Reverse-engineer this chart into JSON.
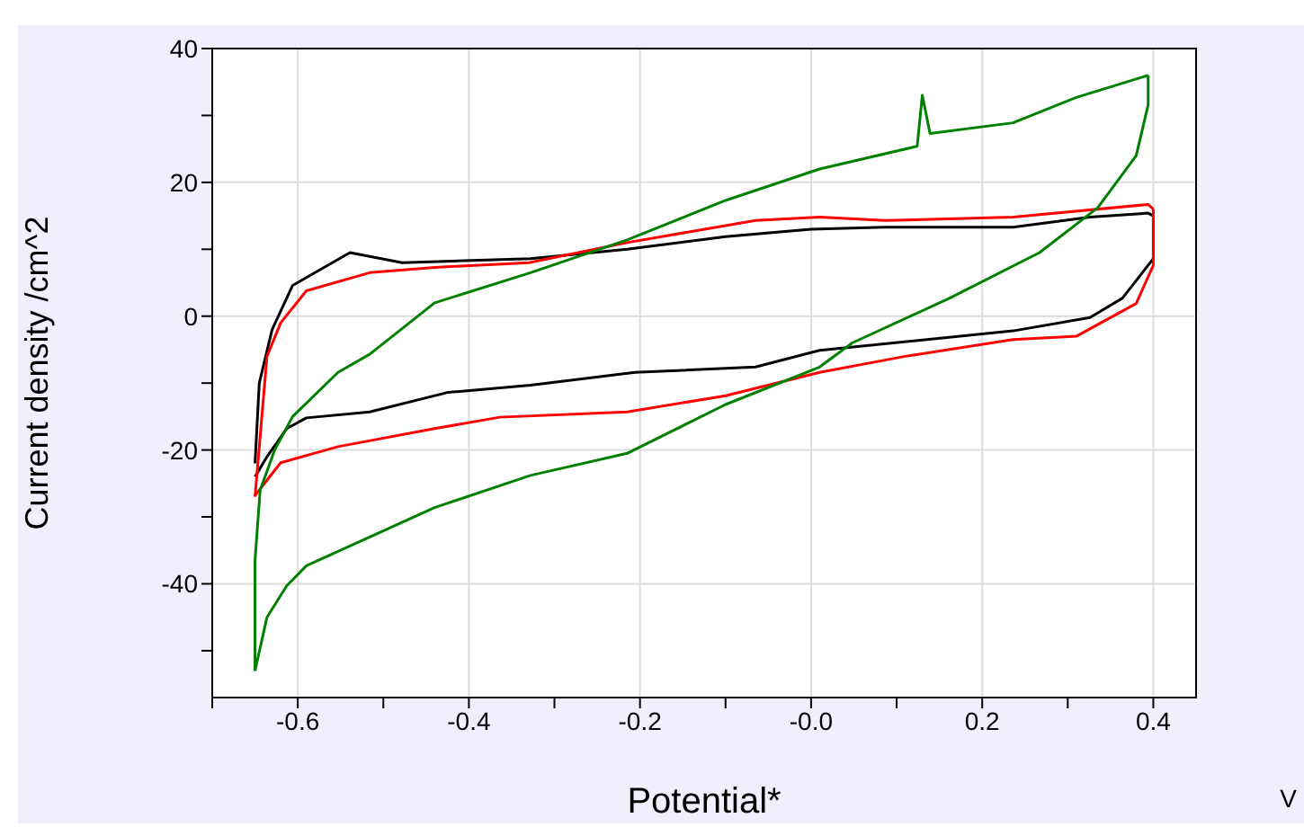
{
  "chart_data": {
    "type": "line",
    "xlabel": "Potential*",
    "ylabel": "Current density /cm^2",
    "annotations": [
      "V"
    ],
    "xlim": [
      -0.7,
      0.45
    ],
    "ylim": [
      -57,
      40
    ],
    "xticks": [
      {
        "value": -0.7,
        "label": null
      },
      -0.6,
      {
        "value": -0.5,
        "label": null
      },
      -0.4,
      {
        "value": -0.3,
        "label": null
      },
      -0.2,
      {
        "value": -0.1,
        "label": null
      },
      {
        "value": 0,
        "label": "-0.0"
      },
      {
        "value": 0.1,
        "label": null
      },
      0.2,
      {
        "value": 0.3,
        "label": null
      },
      0.4
    ],
    "yticks": [
      {
        "value": -50,
        "label": null
      },
      -40,
      {
        "value": -30,
        "label": null
      },
      -20,
      {
        "value": -10,
        "label": null
      },
      0,
      {
        "value": 10,
        "label": null
      },
      20,
      {
        "value": 30,
        "label": null
      },
      40
    ],
    "grid": true,
    "marker": "none",
    "line_style": "solid",
    "series": [
      {
        "color": "#000000",
        "x": [
          -0.65,
          -0.645,
          -0.63,
          -0.606,
          -0.539,
          -0.478,
          -0.328,
          -0.215,
          -0.1,
          0,
          0.086,
          0.236,
          0.326,
          0.394,
          0.4
        ],
        "values": [
          -22,
          -10,
          -2,
          4.6,
          9.5,
          8,
          8.6,
          10,
          11.9,
          13,
          13.3,
          13.3,
          14.8,
          15.4,
          15
        ]
      },
      {
        "color": "#000000",
        "x": [
          0.4,
          0.4,
          0.364,
          0.326,
          0.236,
          0.01,
          -0.065,
          -0.206,
          -0.328,
          -0.425,
          -0.516,
          -0.59,
          -0.613,
          -0.636,
          -0.65
        ],
        "values": [
          15,
          8.6,
          2.7,
          -0.2,
          -2.2,
          -5.1,
          -7.6,
          -8.4,
          -10.3,
          -11.4,
          -14.3,
          -15.2,
          -16.8,
          -21,
          -24
        ]
      },
      {
        "color": "#ff0000",
        "x": [
          -0.65,
          -0.636,
          -0.62,
          -0.59,
          -0.516,
          -0.44,
          -0.33,
          -0.215,
          -0.065,
          0.01,
          0.086,
          0.236,
          0.394,
          0.4
        ],
        "values": [
          -27,
          -6,
          -1,
          3.8,
          6.5,
          7.3,
          8,
          11,
          14.3,
          14.8,
          14.3,
          14.8,
          16.7,
          16
        ]
      },
      {
        "color": "#ff0000",
        "x": [
          0.4,
          0.4,
          0.38,
          0.31,
          0.236,
          0.11,
          0.01,
          -0.1,
          -0.215,
          -0.364,
          -0.44,
          -0.553,
          -0.62,
          -0.65
        ],
        "values": [
          16,
          7.6,
          1.9,
          -3,
          -3.5,
          -6,
          -8.4,
          -11.9,
          -14.3,
          -15.1,
          -16.8,
          -19.5,
          -21.9,
          -26.8
        ]
      },
      {
        "color": "#008000",
        "x": [
          -0.65,
          -0.65,
          -0.644,
          -0.627,
          -0.606,
          -0.553,
          -0.516,
          -0.44,
          -0.328,
          -0.215,
          -0.1,
          0.01,
          0.124,
          0.13,
          0.139,
          0.236,
          0.31,
          0.394
        ],
        "values": [
          -53,
          -36.5,
          -26,
          -20,
          -15,
          -8.4,
          -5.7,
          2,
          6.5,
          11.4,
          17.3,
          22,
          25.4,
          33,
          27.3,
          28.9,
          32.7,
          36
        ]
      },
      {
        "color": "#008000",
        "x": [
          0.394,
          0.394,
          0.38,
          0.335,
          0.267,
          0.162,
          0.048,
          0.01,
          -0.1,
          -0.215,
          -0.328,
          -0.44,
          -0.59,
          -0.613,
          -0.636,
          -0.65
        ],
        "values": [
          36,
          31.6,
          24,
          16.2,
          9.5,
          2.7,
          -4,
          -7.6,
          -13.2,
          -20.5,
          -23.8,
          -28.6,
          -37.3,
          -40.3,
          -45,
          -53
        ]
      }
    ]
  }
}
